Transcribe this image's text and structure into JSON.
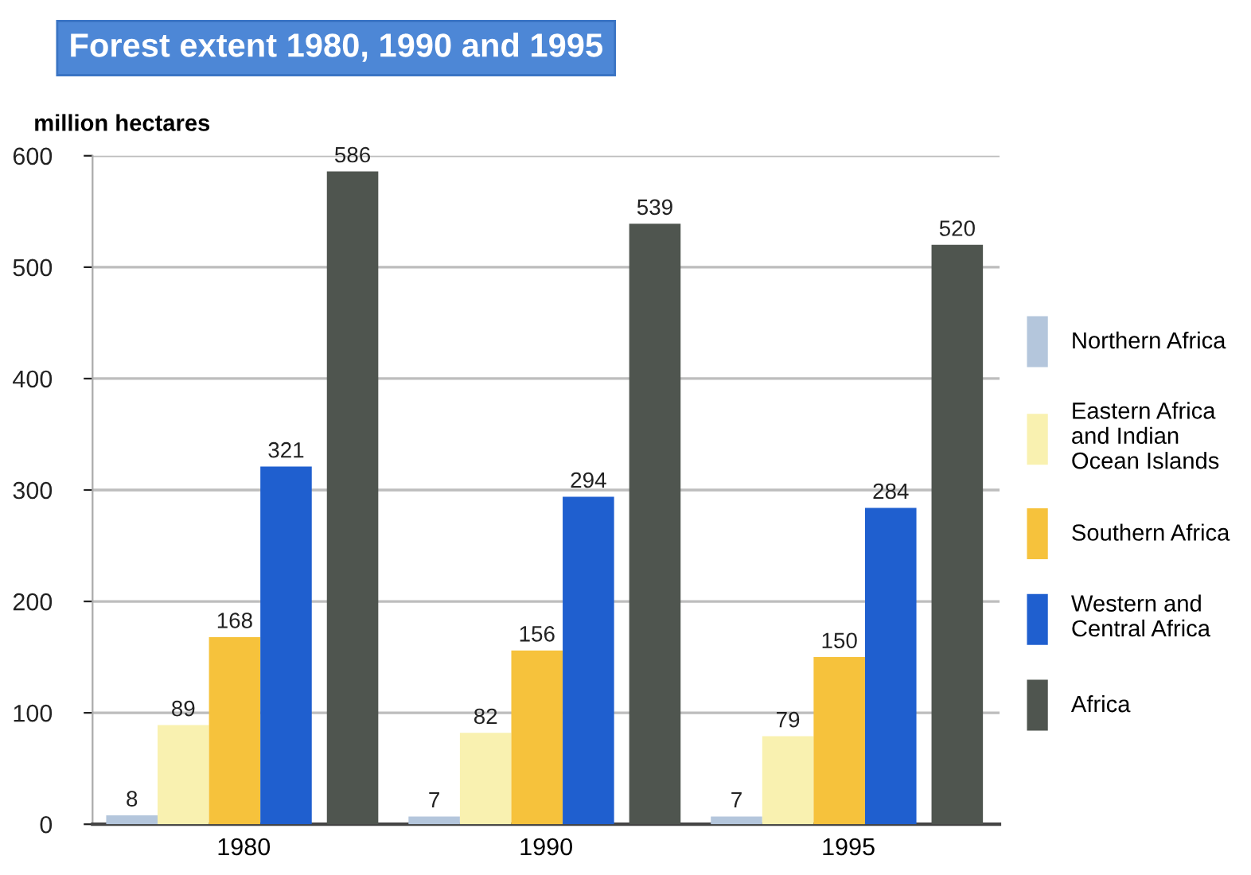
{
  "chart_data": {
    "type": "bar",
    "title": "Forest extent 1980, 1990 and 1995",
    "ylabel": "million hectares",
    "categories": [
      "1980",
      "1990",
      "1995"
    ],
    "series": [
      {
        "name": "Northern Africa",
        "color": "#b4c6dc",
        "values": [
          8,
          7,
          7
        ]
      },
      {
        "name": "Eastern Africa\nand Indian\nOcean Islands",
        "color": "#f9f1b0",
        "values": [
          89,
          82,
          79
        ]
      },
      {
        "name": "Southern Africa",
        "color": "#f6c23c",
        "values": [
          168,
          156,
          150
        ]
      },
      {
        "name": "Western and\nCentral Africa",
        "color": "#1f5fcf",
        "values": [
          321,
          294,
          284
        ]
      },
      {
        "name": "Africa",
        "color": "#4f554f",
        "values": [
          586,
          539,
          520
        ]
      }
    ],
    "ylim": [
      0,
      600
    ],
    "yticks": [
      0,
      100,
      200,
      300,
      400,
      500,
      600
    ],
    "grid": "y",
    "legend": "right",
    "data_labels": true
  }
}
